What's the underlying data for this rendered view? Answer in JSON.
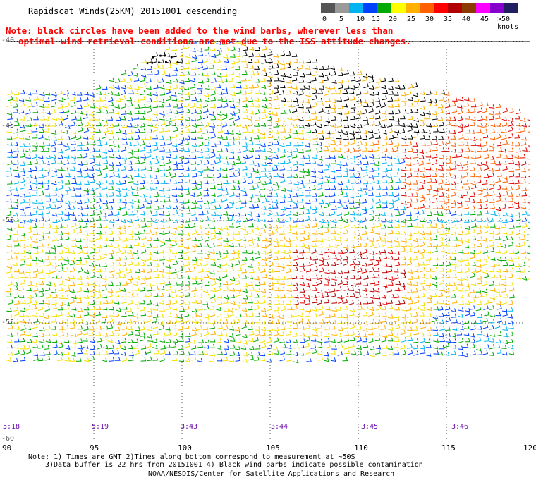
{
  "title": "Rapidscat Winds(25KM) 20151001 descending",
  "note_line1": "Note: black circles have been added to the wind barbs, wherever less than",
  "note_line2": "optimal wind retrieval conditions are met due to the ISS attitude changes.",
  "colorbar": {
    "unit_label": ">50 knots",
    "labels": [
      "0",
      "5",
      "10",
      "15",
      "20",
      "25",
      "30",
      "35",
      "40",
      "45"
    ],
    "colors": [
      "#555555",
      "#9a9a9a",
      "#00b4f0",
      "#0040ff",
      "#00aa00",
      "#ffff00",
      "#ffb000",
      "#ff6000",
      "#ff0000",
      "#b00000",
      "#8b3a00",
      "#ff00ff",
      "#8800cc",
      "#202060"
    ]
  },
  "lon_labels": [
    "90",
    "95",
    "100",
    "105",
    "110",
    "115",
    "120"
  ],
  "lat_labels": [
    "-40",
    "-45",
    "-50",
    "-55",
    "-60"
  ],
  "time_labels": [
    "5:18",
    "5:19",
    "3:43",
    "3:44",
    "3:45",
    "3:46"
  ],
  "footer_line1": "Note: 1) Times are GMT 2)Times along bottom correspond to measurement at ~50S",
  "footer_line2": "3)Data buffer is 22 hrs from 20151001 4) Black wind barbs indicate possible contamination",
  "footer_line3": "NOAA/NESDIS/Center for Satellite Applications and Research"
}
